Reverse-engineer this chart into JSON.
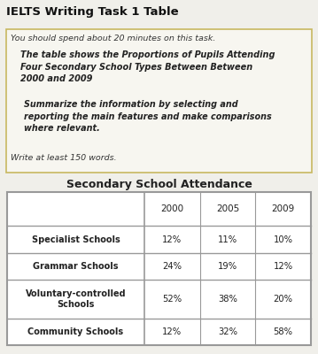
{
  "title_main": "IELTS Writing Task 1 Table",
  "box_line1": "You should spend about 20 minutes on this task.",
  "box_bold1": "The table shows the Proportions of Pupils Attending\nFour Secondary School Types Between Between\n2000 and 2009",
  "box_bold2": "Summarize the information by selecting and\nreporting the main features and make comparisons\nwhere relevant.",
  "box_line_last": "Write at least 150 words.",
  "table_title": "Secondary School Attendance",
  "col_headers": [
    "",
    "2000",
    "2005",
    "2009"
  ],
  "rows": [
    [
      "Specialist Schools",
      "12%",
      "11%",
      "10%"
    ],
    [
      "Grammar Schools",
      "24%",
      "19%",
      "12%"
    ],
    [
      "Voluntary-controlled\nSchools",
      "52%",
      "38%",
      "20%"
    ],
    [
      "Community Schools",
      "12%",
      "32%",
      "58%"
    ]
  ],
  "bg_color": "#f0efea",
  "box_border_color": "#c8b860",
  "table_border_color": "#999999",
  "title_fontsize": 9.5,
  "body_fontsize": 6.8,
  "bold_fontsize": 7.0,
  "table_title_fontsize": 9.0,
  "table_header_fontsize": 7.5,
  "table_data_fontsize": 7.2,
  "table_label_fontsize": 7.0
}
